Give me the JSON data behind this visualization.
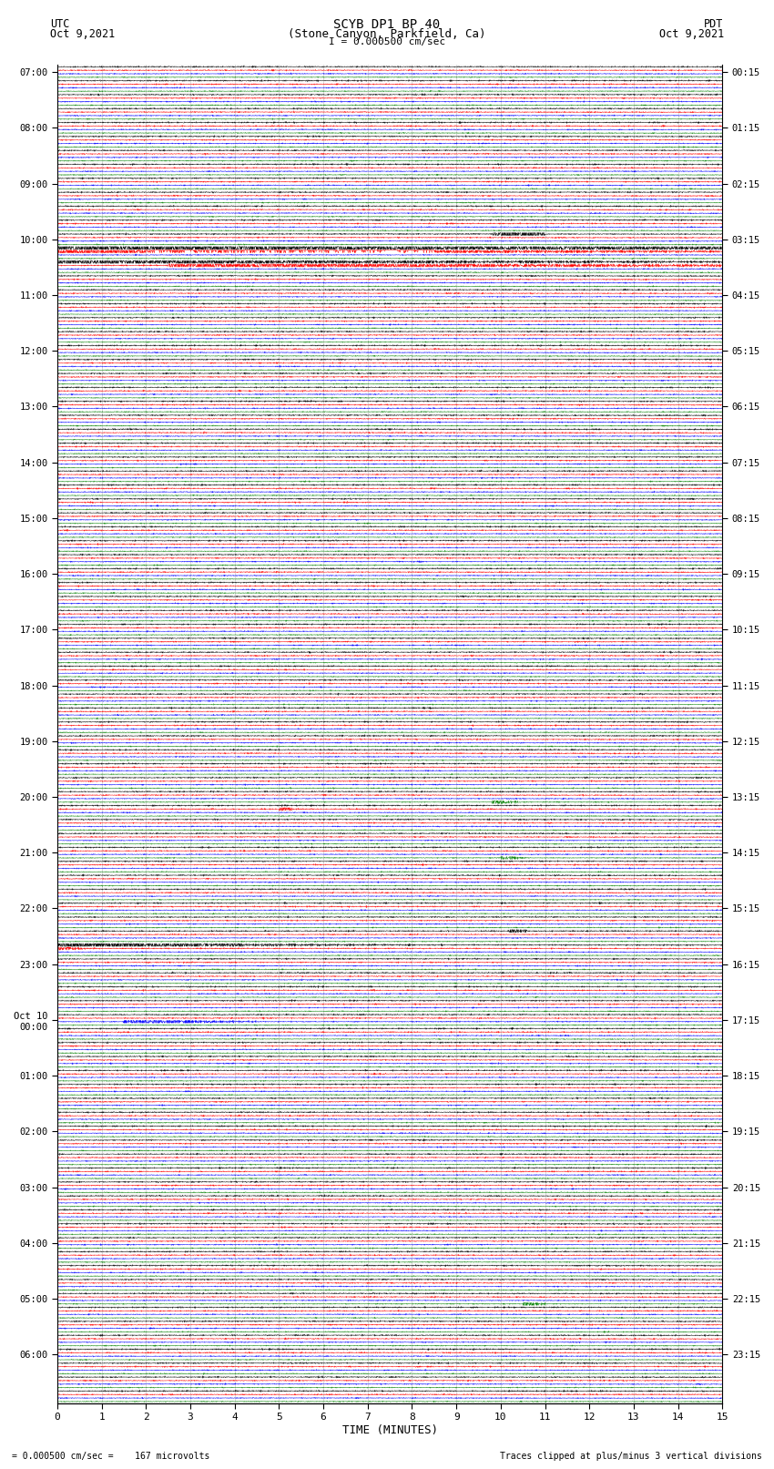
{
  "title_line1": "SCYB DP1 BP 40",
  "title_line2": "(Stone Canyon, Parkfield, Ca)",
  "label_utc": "UTC",
  "label_pdt": "PDT",
  "date_left": "Oct 9,2021",
  "date_right": "Oct 9,2021",
  "scale_text": "I = 0.000500 cm/sec",
  "footer_scale": "= 0.000500 cm/sec =    167 microvolts",
  "footer_right": "Traces clipped at plus/minus 3 vertical divisions",
  "xlabel": "TIME (MINUTES)",
  "colors": [
    "black",
    "red",
    "blue",
    "green"
  ],
  "n_minutes": 15,
  "background_color": "white",
  "row_labels_left": [
    "07:00",
    "",
    "",
    "",
    "08:00",
    "",
    "",
    "",
    "09:00",
    "",
    "",
    "",
    "10:00",
    "",
    "",
    "",
    "11:00",
    "",
    "",
    "",
    "12:00",
    "",
    "",
    "",
    "13:00",
    "",
    "",
    "",
    "14:00",
    "",
    "",
    "",
    "15:00",
    "",
    "",
    "",
    "16:00",
    "",
    "",
    "",
    "17:00",
    "",
    "",
    "",
    "18:00",
    "",
    "",
    "",
    "19:00",
    "",
    "",
    "",
    "20:00",
    "",
    "",
    "",
    "21:00",
    "",
    "",
    "",
    "22:00",
    "",
    "",
    "",
    "23:00",
    "",
    "",
    "",
    "Oct 10\n00:00",
    "",
    "",
    "",
    "01:00",
    "",
    "",
    "",
    "02:00",
    "",
    "",
    "",
    "03:00",
    "",
    "",
    "",
    "04:00",
    "",
    "",
    "",
    "05:00",
    "",
    "",
    "",
    "06:00",
    "",
    "",
    ""
  ],
  "row_labels_right": [
    "00:15",
    "",
    "",
    "",
    "01:15",
    "",
    "",
    "",
    "02:15",
    "",
    "",
    "",
    "03:15",
    "",
    "",
    "",
    "04:15",
    "",
    "",
    "",
    "05:15",
    "",
    "",
    "",
    "06:15",
    "",
    "",
    "",
    "07:15",
    "",
    "",
    "",
    "08:15",
    "",
    "",
    "",
    "09:15",
    "",
    "",
    "",
    "10:15",
    "",
    "",
    "",
    "11:15",
    "",
    "",
    "",
    "12:15",
    "",
    "",
    "",
    "13:15",
    "",
    "",
    "",
    "14:15",
    "",
    "",
    "",
    "15:15",
    "",
    "",
    "",
    "16:15",
    "",
    "",
    "",
    "17:15",
    "",
    "",
    "",
    "18:15",
    "",
    "",
    "",
    "19:15",
    "",
    "",
    "",
    "20:15",
    "",
    "",
    "",
    "21:15",
    "",
    "",
    "",
    "22:15",
    "",
    "",
    "",
    "23:15",
    "",
    "",
    ""
  ],
  "n_rows": 96,
  "traces_per_row": 4,
  "noise_base": 0.12,
  "clip_level": 0.42
}
